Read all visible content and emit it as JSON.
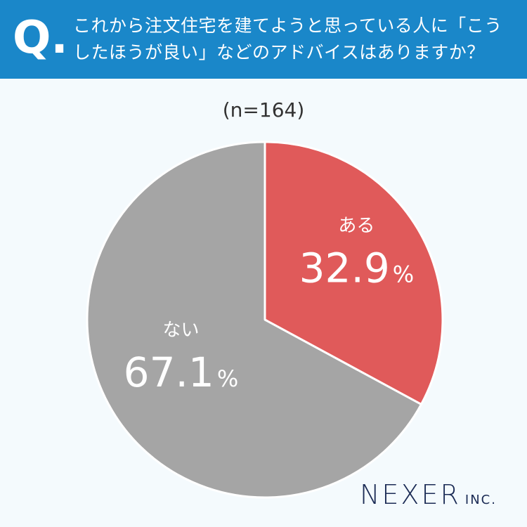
{
  "question": {
    "mark": "Q.",
    "line1": "これから注文住宅を建てようと思っている人に「こう",
    "line2": "したほうが良い」などのアドバイスはありますか？"
  },
  "sample_size": "(n=164)",
  "chart_data": {
    "type": "pie",
    "slices": [
      {
        "label": "ある",
        "value": 32.9,
        "value_label": "32.9",
        "unit": "%",
        "color": "#e05a5a"
      },
      {
        "label": "ない",
        "value": 67.1,
        "value_label": "67.1",
        "unit": "%",
        "color": "#a5a5a5"
      }
    ]
  },
  "logo": {
    "main": "NEXER",
    "sub": "INC."
  }
}
